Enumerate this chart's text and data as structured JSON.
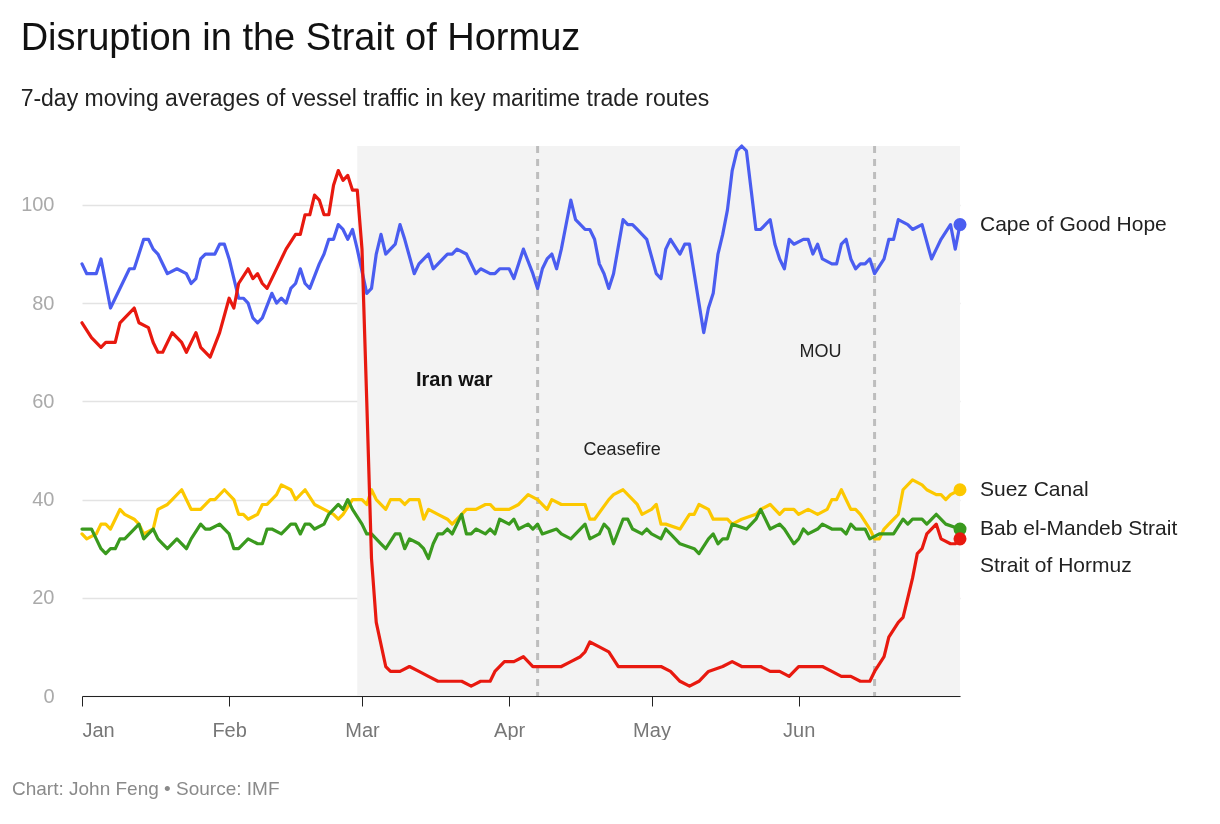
{
  "chart_data": {
    "type": "line",
    "title": "Disruption in the Strait of Hormuz",
    "subtitle": "7-day moving averages of vessel traffic in key maritime trade routes",
    "annotations": [
      "Chart: John Feng • Source: IMF"
    ],
    "xlim": [
      "--01-01",
      "--07-05"
    ],
    "xticks": [
      {
        "value": "--01-01",
        "label": "Jan"
      },
      {
        "value": "--02-01",
        "label": "Feb"
      },
      {
        "value": "--03-01",
        "label": "Mar"
      },
      {
        "value": "--04-01",
        "label": "Apr"
      },
      {
        "value": "--05-01",
        "label": "May"
      },
      {
        "value": "--06-01",
        "label": "Jun"
      }
    ],
    "ylim": [
      0,
      112
    ],
    "yticks": [
      0,
      20,
      40,
      60,
      80,
      100
    ],
    "grid": "y",
    "line_style": "solid",
    "bands": [
      {
        "axis": "x",
        "from": "--02-28",
        "to": "--07-05",
        "label": "Iran war",
        "color": "#f3f3f3"
      }
    ],
    "ref_lines": [
      {
        "axis": "x",
        "value": "--04-07",
        "label": "Ceasefire",
        "color": "#bdbdbd",
        "line_style": "dashed"
      },
      {
        "axis": "x",
        "value": "--06-17",
        "label": "MOU",
        "color": "#bdbdbd",
        "line_style": "dashed"
      }
    ],
    "series": [
      {
        "name": "Cape of Good Hope",
        "color": "#4a5df0",
        "x": [
          "--01-01",
          "--01-02",
          "--01-04",
          "--01-05",
          "--01-07",
          "--01-08",
          "--01-11",
          "--01-12",
          "--01-14",
          "--01-15",
          "--01-16",
          "--01-17",
          "--01-19",
          "--01-21",
          "--01-23",
          "--01-24",
          "--01-25",
          "--01-26",
          "--01-27",
          "--01-29",
          "--01-30",
          "--01-31",
          "--02-01",
          "--02-03",
          "--02-04",
          "--02-05",
          "--02-06",
          "--02-07",
          "--02-08",
          "--02-10",
          "--02-11",
          "--02-12",
          "--02-13",
          "--02-14",
          "--02-15",
          "--02-16",
          "--02-17",
          "--02-18",
          "--02-20",
          "--02-21",
          "--02-22",
          "--02-23",
          "--02-24",
          "--02-25",
          "--02-26",
          "--02-27",
          "--02-28",
          "--03-02",
          "--03-03",
          "--03-04",
          "--03-05",
          "--03-06",
          "--03-07",
          "--03-08",
          "--03-09",
          "--03-10",
          "--03-12",
          "--03-13",
          "--03-15",
          "--03-16",
          "--03-19",
          "--03-20",
          "--03-21",
          "--03-23",
          "--03-25",
          "--03-26",
          "--03-28",
          "--03-29",
          "--03-30",
          "--04-01",
          "--04-02",
          "--04-04",
          "--04-06",
          "--04-07",
          "--04-08",
          "--04-09",
          "--04-10",
          "--04-11",
          "--04-12",
          "--04-14",
          "--04-15",
          "--04-17",
          "--04-18",
          "--04-19",
          "--04-20",
          "--04-21",
          "--04-22",
          "--04-23",
          "--04-25",
          "--04-26",
          "--04-27",
          "--04-28",
          "--04-29",
          "--04-30",
          "--05-02",
          "--05-03",
          "--05-04",
          "--05-05",
          "--05-07",
          "--05-08",
          "--05-09",
          "--05-10",
          "--05-11",
          "--05-12",
          "--05-13",
          "--05-14",
          "--05-15",
          "--05-16",
          "--05-17",
          "--05-18",
          "--05-19",
          "--05-20",
          "--05-21",
          "--05-22",
          "--05-23",
          "--05-24",
          "--05-26",
          "--05-27",
          "--05-28",
          "--05-29",
          "--05-30",
          "--05-31",
          "--06-02",
          "--06-03",
          "--06-04",
          "--06-05",
          "--06-06",
          "--06-08",
          "--06-09",
          "--06-10",
          "--06-11",
          "--06-12",
          "--06-13",
          "--06-14",
          "--06-15",
          "--06-16",
          "--06-17",
          "--06-19",
          "--06-20",
          "--06-21",
          "--06-22",
          "--06-24",
          "--06-25",
          "--06-27",
          "--06-29",
          "--06-30",
          "--07-01",
          "--07-03",
          "--07-04",
          "--07-05"
        ],
        "values": [
          88,
          86,
          86,
          89,
          79,
          81,
          87,
          87,
          93,
          93,
          91,
          90,
          86,
          87,
          86,
          84,
          85,
          89,
          90,
          90,
          92,
          92,
          89,
          81,
          81,
          80,
          77,
          76,
          77,
          82,
          80,
          81,
          80,
          83,
          84,
          87,
          84,
          83,
          88,
          90,
          93,
          93,
          96,
          95,
          93,
          95,
          91,
          82,
          83,
          90,
          94,
          90,
          91,
          92,
          96,
          93,
          86,
          88,
          90,
          87,
          90,
          90,
          91,
          90,
          86,
          87,
          86,
          86,
          87,
          87,
          85,
          91,
          86,
          83,
          87,
          89,
          90,
          87,
          91,
          101,
          97,
          95,
          95,
          93,
          88,
          86,
          83,
          86,
          97,
          96,
          96,
          95,
          94,
          93,
          86,
          85,
          91,
          93,
          90,
          92,
          92,
          86,
          80,
          74,
          79,
          82,
          90,
          94,
          99,
          107,
          111,
          112,
          111,
          103,
          95,
          95,
          97,
          92,
          89,
          87,
          93,
          92,
          93,
          93,
          90,
          92,
          89,
          88,
          88,
          92,
          93,
          89,
          87,
          88,
          88,
          89,
          86,
          89,
          93,
          93,
          97,
          96,
          95,
          96,
          89,
          91,
          93,
          96,
          91,
          96
        ]
      },
      {
        "name": "Suez Canal",
        "color": "#fcc800",
        "x": [
          "--01-01",
          "--01-02",
          "--01-04",
          "--01-05",
          "--01-06",
          "--01-07",
          "--01-08",
          "--01-09",
          "--01-10",
          "--01-12",
          "--01-13",
          "--01-14",
          "--01-16",
          "--01-17",
          "--01-19",
          "--01-20",
          "--01-22",
          "--01-24",
          "--01-25",
          "--01-26",
          "--01-28",
          "--01-29",
          "--01-31",
          "--02-02",
          "--02-03",
          "--02-04",
          "--02-05",
          "--02-07",
          "--02-08",
          "--02-09",
          "--02-11",
          "--02-12",
          "--02-14",
          "--02-15",
          "--02-17",
          "--02-19",
          "--02-21",
          "--02-23",
          "--02-24",
          "--02-25",
          "--02-27",
          "--03-01",
          "--03-02",
          "--03-03",
          "--03-04",
          "--03-06",
          "--03-07",
          "--03-09",
          "--03-10",
          "--03-11",
          "--03-13",
          "--03-14",
          "--03-15",
          "--03-17",
          "--03-19",
          "--03-20",
          "--03-22",
          "--03-23",
          "--03-25",
          "--03-27",
          "--03-28",
          "--03-29",
          "--04-01",
          "--04-03",
          "--04-05",
          "--04-07",
          "--04-09",
          "--04-10",
          "--04-12",
          "--04-14",
          "--04-15",
          "--04-17",
          "--04-18",
          "--04-19",
          "--04-22",
          "--04-23",
          "--04-25",
          "--04-28",
          "--04-29",
          "--05-01",
          "--05-02",
          "--05-03",
          "--05-04",
          "--05-07",
          "--05-09",
          "--05-10",
          "--05-11",
          "--05-13",
          "--05-14",
          "--05-16",
          "--05-17",
          "--05-18",
          "--05-20",
          "--05-23",
          "--05-24",
          "--05-26",
          "--05-27",
          "--05-28",
          "--05-29",
          "--05-31",
          "--06-01",
          "--06-03",
          "--06-05",
          "--06-07",
          "--06-08",
          "--06-09",
          "--06-10",
          "--06-12",
          "--06-13",
          "--06-14",
          "--06-16",
          "--06-17",
          "--06-18",
          "--06-19",
          "--06-20",
          "--06-22",
          "--06-23",
          "--06-25",
          "--06-27",
          "--06-28",
          "--06-30",
          "--07-01",
          "--07-02",
          "--07-03",
          "--07-05"
        ],
        "values": [
          33,
          32,
          33,
          35,
          35,
          34,
          36,
          38,
          37,
          36,
          35,
          33,
          34,
          38,
          39,
          40,
          42,
          38,
          38,
          38,
          40,
          40,
          42,
          40,
          37,
          37,
          36,
          37,
          39,
          39,
          41,
          43,
          42,
          40,
          42,
          39,
          38,
          37,
          36,
          37,
          40,
          40,
          39,
          42,
          40,
          38,
          40,
          40,
          39,
          40,
          40,
          36,
          38,
          37,
          36,
          35,
          37,
          38,
          38,
          39,
          39,
          38,
          38,
          39,
          41,
          40,
          38,
          40,
          39,
          39,
          39,
          39,
          36,
          36,
          40,
          41,
          42,
          39,
          37,
          38,
          39,
          35,
          35,
          34,
          37,
          37,
          39,
          38,
          36,
          36,
          36,
          35,
          36,
          37,
          38,
          39,
          38,
          37,
          38,
          38,
          37,
          38,
          37,
          38,
          40,
          40,
          42,
          38,
          38,
          37,
          34,
          32,
          32,
          34,
          35,
          37,
          42,
          44,
          43,
          42,
          41,
          41,
          40,
          41,
          42
        ]
      },
      {
        "name": "Bab el-Mandeb Strait",
        "color": "#3a9a1e",
        "x": [
          "--01-01",
          "--01-03",
          "--01-04",
          "--01-05",
          "--01-06",
          "--01-07",
          "--01-08",
          "--01-09",
          "--01-10",
          "--01-12",
          "--01-13",
          "--01-14",
          "--01-15",
          "--01-16",
          "--01-17",
          "--01-18",
          "--01-19",
          "--01-21",
          "--01-23",
          "--01-24",
          "--01-26",
          "--01-27",
          "--01-28",
          "--01-30",
          "--02-01",
          "--02-02",
          "--02-03",
          "--02-05",
          "--02-07",
          "--02-08",
          "--02-09",
          "--02-10",
          "--02-12",
          "--02-13",
          "--02-14",
          "--02-15",
          "--02-16",
          "--02-17",
          "--02-18",
          "--02-19",
          "--02-21",
          "--02-22",
          "--02-23",
          "--02-24",
          "--02-25",
          "--02-26",
          "--02-27",
          "--03-01",
          "--03-02",
          "--03-03",
          "--03-05",
          "--03-06",
          "--03-08",
          "--03-09",
          "--03-10",
          "--03-11",
          "--03-13",
          "--03-14",
          "--03-15",
          "--03-16",
          "--03-17",
          "--03-18",
          "--03-19",
          "--03-20",
          "--03-22",
          "--03-23",
          "--03-24",
          "--03-25",
          "--03-27",
          "--03-28",
          "--03-29",
          "--03-30",
          "--04-01",
          "--04-02",
          "--04-03",
          "--04-05",
          "--04-06",
          "--04-07",
          "--04-08",
          "--04-11",
          "--04-12",
          "--04-14",
          "--04-17",
          "--04-18",
          "--04-20",
          "--04-21",
          "--04-22",
          "--04-23",
          "--04-25",
          "--04-26",
          "--04-27",
          "--04-29",
          "--04-30",
          "--05-01",
          "--05-03",
          "--05-04",
          "--05-05",
          "--05-06",
          "--05-07",
          "--05-10",
          "--05-11",
          "--05-13",
          "--05-14",
          "--05-15",
          "--05-16",
          "--05-17",
          "--05-18",
          "--05-21",
          "--05-22",
          "--05-23",
          "--05-24",
          "--05-26",
          "--05-28",
          "--05-29",
          "--05-31",
          "--06-01",
          "--06-02",
          "--06-03",
          "--06-05",
          "--06-06",
          "--06-08",
          "--06-10",
          "--06-11",
          "--06-12",
          "--06-13",
          "--06-15",
          "--06-16",
          "--06-18",
          "--06-19",
          "--06-21",
          "--06-23",
          "--06-24",
          "--06-25",
          "--06-27",
          "--06-28",
          "--06-30",
          "--07-02",
          "--07-05"
        ],
        "values": [
          34,
          34,
          32,
          30,
          29,
          30,
          30,
          32,
          32,
          34,
          35,
          32,
          33,
          34,
          32,
          31,
          30,
          32,
          30,
          32,
          35,
          34,
          34,
          35,
          33,
          30,
          30,
          32,
          31,
          31,
          34,
          34,
          33,
          34,
          35,
          35,
          33,
          35,
          35,
          34,
          35,
          37,
          38,
          39,
          38,
          40,
          38,
          35,
          33,
          33,
          31,
          30,
          33,
          33,
          30,
          32,
          31,
          30,
          28,
          31,
          33,
          33,
          34,
          33,
          37,
          33,
          33,
          34,
          33,
          34,
          33,
          36,
          35,
          36,
          34,
          35,
          34,
          35,
          33,
          34,
          33,
          32,
          35,
          32,
          33,
          35,
          34,
          31,
          36,
          36,
          34,
          33,
          34,
          33,
          32,
          34,
          33,
          32,
          31,
          30,
          29,
          32,
          33,
          31,
          32,
          32,
          35,
          34,
          35,
          36,
          38,
          34,
          35,
          34,
          31,
          32,
          34,
          33,
          34,
          35,
          34,
          34,
          33,
          35,
          34,
          34,
          32,
          33,
          33,
          33,
          36,
          35,
          36,
          36,
          35,
          37,
          35,
          34
        ]
      },
      {
        "name": "Strait of Hormuz",
        "color": "#e8190f",
        "x": [
          "--01-01",
          "--01-03",
          "--01-05",
          "--01-06",
          "--01-08",
          "--01-09",
          "--01-12",
          "--01-13",
          "--01-15",
          "--01-16",
          "--01-17",
          "--01-18",
          "--01-20",
          "--01-22",
          "--01-23",
          "--01-25",
          "--01-26",
          "--01-28",
          "--01-30",
          "--02-01",
          "--02-02",
          "--02-03",
          "--02-05",
          "--02-06",
          "--02-07",
          "--02-08",
          "--02-09",
          "--02-10",
          "--02-13",
          "--02-15",
          "--02-16",
          "--02-17",
          "--02-18",
          "--02-19",
          "--02-20",
          "--02-21",
          "--02-22",
          "--02-23",
          "--02-24",
          "--02-25",
          "--02-26",
          "--02-27",
          "--02-28",
          "--03-01",
          "--03-02",
          "--03-03",
          "--03-04",
          "--03-06",
          "--03-07",
          "--03-09",
          "--03-11",
          "--03-13",
          "--03-15",
          "--03-17",
          "--03-20",
          "--03-22",
          "--03-24",
          "--03-26",
          "--03-28",
          "--03-29",
          "--03-31",
          "--04-02",
          "--04-04",
          "--04-06",
          "--04-09",
          "--04-12",
          "--04-14",
          "--04-16",
          "--04-17",
          "--04-18",
          "--04-20",
          "--04-22",
          "--04-24",
          "--04-27",
          "--04-29",
          "--05-01",
          "--05-03",
          "--05-05",
          "--05-07",
          "--05-09",
          "--05-11",
          "--05-13",
          "--05-16",
          "--05-18",
          "--05-20",
          "--05-22",
          "--05-24",
          "--05-26",
          "--05-28",
          "--05-30",
          "--06-01",
          "--06-04",
          "--06-06",
          "--06-08",
          "--06-10",
          "--06-12",
          "--06-14",
          "--06-16",
          "--06-17",
          "--06-19",
          "--06-20",
          "--06-22",
          "--06-23",
          "--06-24",
          "--06-25",
          "--06-26",
          "--06-27",
          "--06-28",
          "--06-30",
          "--07-01",
          "--07-03",
          "--07-04",
          "--07-05"
        ],
        "values": [
          76,
          73,
          71,
          72,
          72,
          76,
          79,
          76,
          75,
          72,
          70,
          70,
          74,
          72,
          70,
          74,
          71,
          69,
          74,
          81,
          79,
          84,
          87,
          85,
          86,
          84,
          83,
          85,
          91,
          94,
          94,
          98,
          98,
          102,
          101,
          98,
          98,
          104,
          107,
          105,
          106,
          103,
          103,
          91,
          60,
          28,
          15,
          6,
          5,
          5,
          6,
          5,
          4,
          3,
          3,
          3,
          2,
          3,
          3,
          5,
          7,
          7,
          8,
          6,
          6,
          6,
          7,
          8,
          9,
          11,
          10,
          9,
          6,
          6,
          6,
          6,
          6,
          5,
          3,
          2,
          3,
          5,
          6,
          7,
          6,
          6,
          6,
          5,
          5,
          4,
          6,
          6,
          6,
          5,
          4,
          4,
          3,
          3,
          5,
          8,
          12,
          15,
          16,
          20,
          24,
          29,
          30,
          33,
          35,
          32,
          31,
          31,
          32
        ]
      }
    ]
  }
}
